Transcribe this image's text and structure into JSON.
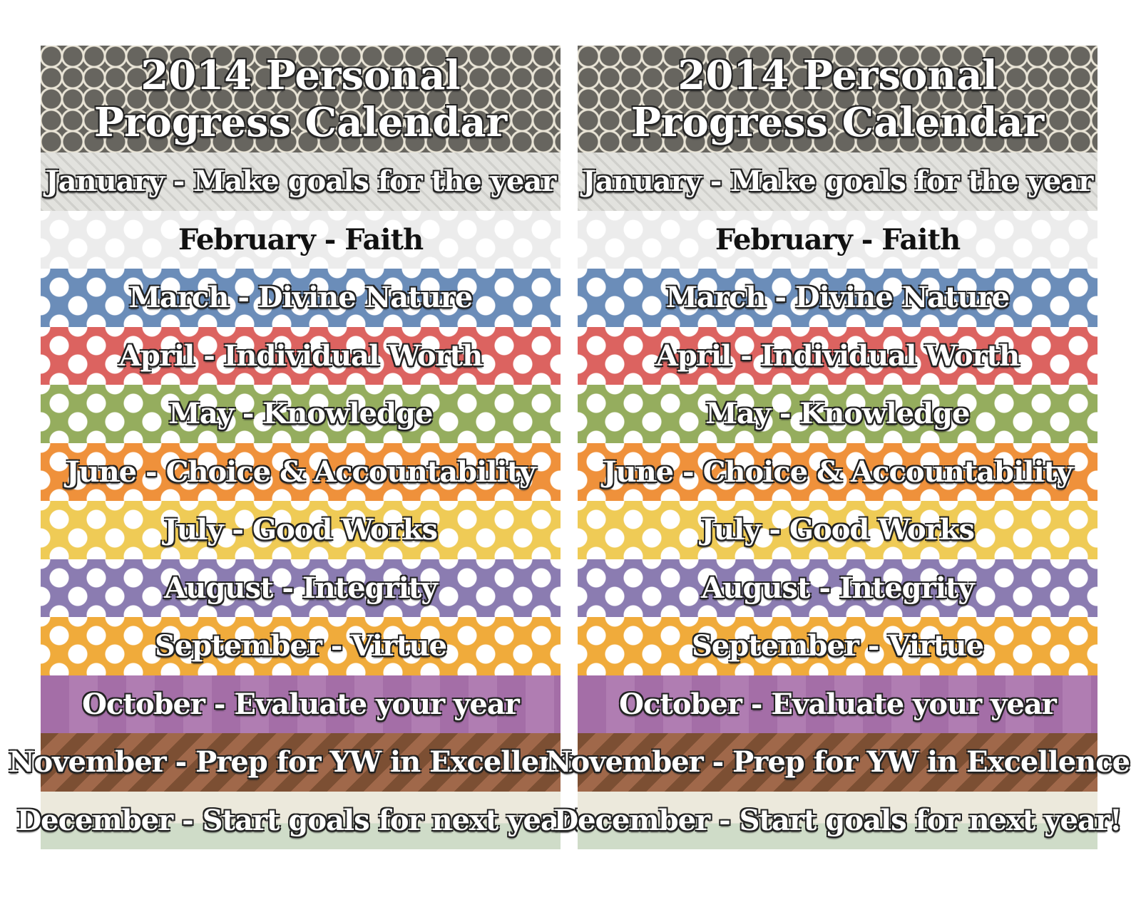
{
  "cards": [
    {
      "title": "2014 Personal Progress Calendar",
      "rows": [
        "January - Make goals for the year",
        "February - Faith",
        "March - Divine Nature",
        "April - Individual Worth",
        "May - Knowledge",
        "June - Choice & Accountability",
        "July - Good Works",
        "August - Integrity",
        "September - Virtue",
        "October - Evaluate your year",
        "November - Prep for YW in Excellence",
        "December - Start goals for next year!"
      ]
    },
    {
      "title": "2014 Personal Progress Calendar",
      "rows": [
        "January - Make goals for the year",
        "February - Faith",
        "March - Divine Nature",
        "April - Individual Worth",
        "May - Knowledge",
        "June - Choice & Accountability",
        "July - Good Works",
        "August - Integrity",
        "September - Virtue",
        "October - Evaluate your year",
        "November - Prep for YW in Excellence",
        "December - Start goals for next year!"
      ]
    }
  ]
}
